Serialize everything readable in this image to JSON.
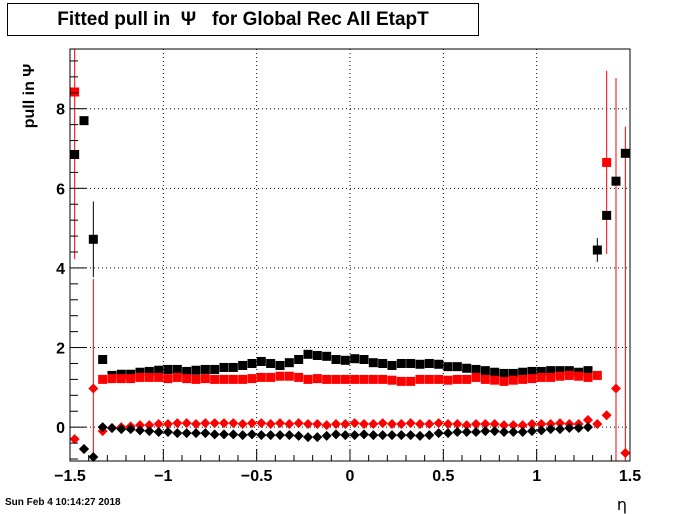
{
  "title": {
    "prefix": "Fitted pull in",
    "symbol": "Ψ",
    "suffix": "for Global Rec All EtapT"
  },
  "timestamp": "Sun Feb  4 10:14:27 2018",
  "chart_data": {
    "type": "scatter",
    "xlabel": "η",
    "ylabel": "pull in  Ψ",
    "xlim": [
      -1.5,
      1.5
    ],
    "ylim": [
      -0.85,
      9.5
    ],
    "xticks": [
      -1.5,
      -1,
      -0.5,
      0,
      0.5,
      1,
      1.5
    ],
    "xtick_labels": [
      "−1.5",
      "−1",
      "−0.5",
      "0",
      "0.5",
      "1",
      "1.5"
    ],
    "yticks": [
      0,
      2,
      4,
      6,
      8
    ],
    "ytick_labels": [
      "0",
      "2",
      "4",
      "6",
      "8"
    ],
    "grid": true,
    "colors": {
      "black_series": "#000000",
      "red_series": "#ff0000"
    },
    "series": [
      {
        "marker": "square",
        "color": "#000000",
        "x": [
          -1.475,
          -1.425,
          -1.375,
          -1.325,
          -1.275,
          -1.225,
          -1.175,
          -1.125,
          -1.075,
          -1.025,
          -0.975,
          -0.925,
          -0.875,
          -0.825,
          -0.775,
          -0.725,
          -0.675,
          -0.625,
          -0.575,
          -0.525,
          -0.475,
          -0.425,
          -0.375,
          -0.325,
          -0.275,
          -0.225,
          -0.175,
          -0.125,
          -0.075,
          -0.025,
          0.025,
          0.075,
          0.125,
          0.175,
          0.225,
          0.275,
          0.325,
          0.375,
          0.425,
          0.475,
          0.525,
          0.575,
          0.625,
          0.675,
          0.725,
          0.775,
          0.825,
          0.875,
          0.925,
          0.975,
          1.025,
          1.075,
          1.125,
          1.175,
          1.225,
          1.275,
          1.325,
          1.375,
          1.425,
          1.475
        ],
        "y": [
          6.85,
          7.7,
          4.72,
          1.7,
          1.3,
          1.33,
          1.33,
          1.38,
          1.4,
          1.43,
          1.45,
          1.45,
          1.4,
          1.43,
          1.45,
          1.45,
          1.5,
          1.5,
          1.55,
          1.6,
          1.65,
          1.6,
          1.55,
          1.62,
          1.7,
          1.83,
          1.8,
          1.78,
          1.7,
          1.68,
          1.72,
          1.7,
          1.62,
          1.6,
          1.55,
          1.6,
          1.6,
          1.58,
          1.6,
          1.58,
          1.52,
          1.52,
          1.48,
          1.45,
          1.42,
          1.38,
          1.35,
          1.35,
          1.38,
          1.4,
          1.4,
          1.42,
          1.42,
          1.42,
          1.38,
          1.42,
          4.45,
          5.32,
          6.18,
          6.88
        ],
        "err": [
          0,
          0,
          0.95,
          0,
          0,
          0,
          0,
          0,
          0,
          0,
          0,
          0,
          0,
          0,
          0,
          0,
          0,
          0,
          0,
          0,
          0,
          0,
          0,
          0,
          0,
          0,
          0,
          0,
          0,
          0,
          0,
          0,
          0,
          0,
          0,
          0,
          0,
          0,
          0,
          0,
          0,
          0,
          0,
          0,
          0,
          0,
          0,
          0,
          0,
          0,
          0,
          0,
          0,
          0,
          0,
          0,
          0.3,
          0,
          0,
          0
        ]
      },
      {
        "marker": "square",
        "color": "#ff0000",
        "x": [
          -1.475,
          -1.325,
          -1.275,
          -1.225,
          -1.175,
          -1.125,
          -1.075,
          -1.025,
          -0.975,
          -0.925,
          -0.875,
          -0.825,
          -0.775,
          -0.725,
          -0.675,
          -0.625,
          -0.575,
          -0.525,
          -0.475,
          -0.425,
          -0.375,
          -0.325,
          -0.275,
          -0.225,
          -0.175,
          -0.125,
          -0.075,
          -0.025,
          0.025,
          0.075,
          0.125,
          0.175,
          0.225,
          0.275,
          0.325,
          0.375,
          0.425,
          0.475,
          0.525,
          0.575,
          0.625,
          0.675,
          0.725,
          0.775,
          0.825,
          0.875,
          0.925,
          0.975,
          1.025,
          1.075,
          1.125,
          1.175,
          1.225,
          1.275,
          1.325,
          1.375
        ],
        "y": [
          8.42,
          1.2,
          1.22,
          1.22,
          1.22,
          1.25,
          1.25,
          1.25,
          1.22,
          1.25,
          1.22,
          1.2,
          1.22,
          1.2,
          1.2,
          1.2,
          1.2,
          1.22,
          1.25,
          1.25,
          1.28,
          1.28,
          1.25,
          1.2,
          1.22,
          1.2,
          1.2,
          1.2,
          1.2,
          1.2,
          1.2,
          1.2,
          1.18,
          1.15,
          1.15,
          1.2,
          1.2,
          1.2,
          1.18,
          1.2,
          1.2,
          1.25,
          1.2,
          1.18,
          1.15,
          1.18,
          1.2,
          1.22,
          1.25,
          1.25,
          1.28,
          1.3,
          1.28,
          1.25,
          1.3,
          6.65
        ],
        "err": [
          4.2,
          0,
          0,
          0,
          0,
          0,
          0,
          0,
          0,
          0,
          0,
          0,
          0,
          0,
          0,
          0,
          0,
          0,
          0,
          0,
          0,
          0,
          0,
          0,
          0,
          0,
          0,
          0,
          0,
          0,
          0,
          0,
          0,
          0,
          0,
          0,
          0,
          0,
          0,
          0,
          0,
          0,
          0,
          0,
          0,
          0,
          0,
          0,
          0,
          0,
          0,
          0,
          0,
          0,
          0,
          2.3
        ]
      },
      {
        "marker": "diamond",
        "color": "#ff0000",
        "x": [
          -1.475,
          -1.425,
          -1.375,
          -1.325,
          -1.275,
          -1.225,
          -1.175,
          -1.125,
          -1.075,
          -1.025,
          -0.975,
          -0.925,
          -0.875,
          -0.825,
          -0.775,
          -0.725,
          -0.675,
          -0.625,
          -0.575,
          -0.525,
          -0.475,
          -0.425,
          -0.375,
          -0.325,
          -0.275,
          -0.225,
          -0.175,
          -0.125,
          -0.075,
          -0.025,
          0.025,
          0.075,
          0.125,
          0.175,
          0.225,
          0.275,
          0.325,
          0.375,
          0.425,
          0.475,
          0.525,
          0.575,
          0.625,
          0.675,
          0.725,
          0.775,
          0.825,
          0.875,
          0.925,
          0.975,
          1.025,
          1.075,
          1.125,
          1.175,
          1.225,
          1.275,
          1.325,
          1.375,
          1.425,
          1.475
        ],
        "y": [
          -0.3,
          -0.55,
          0.97,
          -0.1,
          -0.02,
          0.0,
          0.02,
          0.05,
          0.05,
          0.08,
          0.08,
          0.1,
          0.1,
          0.08,
          0.1,
          0.1,
          0.1,
          0.1,
          0.08,
          0.1,
          0.1,
          0.08,
          0.1,
          0.08,
          0.1,
          0.08,
          0.08,
          0.05,
          0.08,
          0.08,
          0.1,
          0.08,
          0.08,
          0.1,
          0.08,
          0.08,
          0.1,
          0.08,
          0.08,
          0.1,
          0.08,
          0.08,
          0.05,
          0.08,
          0.08,
          0.08,
          0.05,
          0.05,
          0.05,
          0.08,
          0.08,
          0.08,
          0.1,
          0.08,
          0.08,
          0.18,
          0.08,
          0.3,
          0.97,
          -0.65
        ],
        "err": [
          0,
          0,
          2.75,
          0,
          0,
          0,
          0,
          0,
          0,
          0,
          0,
          0,
          0,
          0,
          0,
          0,
          0,
          0,
          0,
          0,
          0,
          0,
          0,
          0,
          0,
          0,
          0,
          0,
          0,
          0,
          0,
          0,
          0,
          0,
          0,
          0,
          0,
          0,
          0,
          0,
          0,
          0,
          0,
          0,
          0,
          0,
          0,
          0,
          0,
          0,
          0,
          0,
          0,
          0,
          0,
          0,
          0,
          0,
          7.8,
          8.2
        ]
      },
      {
        "marker": "diamond",
        "color": "#000000",
        "x": [
          -1.425,
          -1.375,
          -1.325,
          -1.275,
          -1.225,
          -1.175,
          -1.125,
          -1.075,
          -1.025,
          -0.975,
          -0.925,
          -0.875,
          -0.825,
          -0.775,
          -0.725,
          -0.675,
          -0.625,
          -0.575,
          -0.525,
          -0.475,
          -0.425,
          -0.375,
          -0.325,
          -0.275,
          -0.225,
          -0.175,
          -0.125,
          -0.075,
          -0.025,
          0.025,
          0.075,
          0.125,
          0.175,
          0.225,
          0.275,
          0.325,
          0.375,
          0.425,
          0.475,
          0.525,
          0.575,
          0.625,
          0.675,
          0.725,
          0.775,
          0.825,
          0.875,
          0.925,
          0.975,
          1.025,
          1.075,
          1.125,
          1.175,
          1.225,
          1.275
        ],
        "y": [
          -0.55,
          -0.75,
          0.0,
          -0.02,
          -0.05,
          -0.05,
          -0.08,
          -0.1,
          -0.12,
          -0.12,
          -0.15,
          -0.15,
          -0.15,
          -0.15,
          -0.18,
          -0.18,
          -0.18,
          -0.2,
          -0.18,
          -0.2,
          -0.2,
          -0.2,
          -0.2,
          -0.22,
          -0.25,
          -0.25,
          -0.22,
          -0.18,
          -0.2,
          -0.2,
          -0.18,
          -0.2,
          -0.2,
          -0.2,
          -0.2,
          -0.2,
          -0.22,
          -0.2,
          -0.15,
          -0.15,
          -0.12,
          -0.12,
          -0.12,
          -0.1,
          -0.1,
          -0.12,
          -0.12,
          -0.12,
          -0.1,
          -0.08,
          -0.05,
          -0.05,
          -0.02,
          -0.02,
          0.0
        ],
        "err": []
      }
    ]
  }
}
